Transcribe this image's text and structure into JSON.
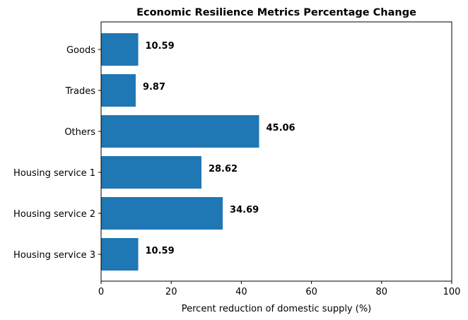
{
  "chart_data": {
    "type": "bar",
    "orientation": "horizontal",
    "title": "Economic Resilience Metrics Percentage Change",
    "xlabel": "Percent reduction of domestic supply (%)",
    "ylabel": "",
    "categories": [
      "Goods",
      "Trades",
      "Others",
      "Housing service 1",
      "Housing service 2",
      "Housing service 3"
    ],
    "values": [
      10.59,
      9.87,
      45.06,
      28.62,
      34.69,
      10.59
    ],
    "data_labels": [
      "10.59",
      "9.87",
      "45.06",
      "28.62",
      "34.69",
      "10.59"
    ],
    "xlim": [
      0,
      100
    ],
    "xticks": [
      0,
      20,
      40,
      60,
      80,
      100
    ],
    "xtick_labels": [
      "0",
      "20",
      "40",
      "60",
      "80",
      "100"
    ],
    "grid": false,
    "legend": "none",
    "bar_color": "#1f77b4"
  }
}
